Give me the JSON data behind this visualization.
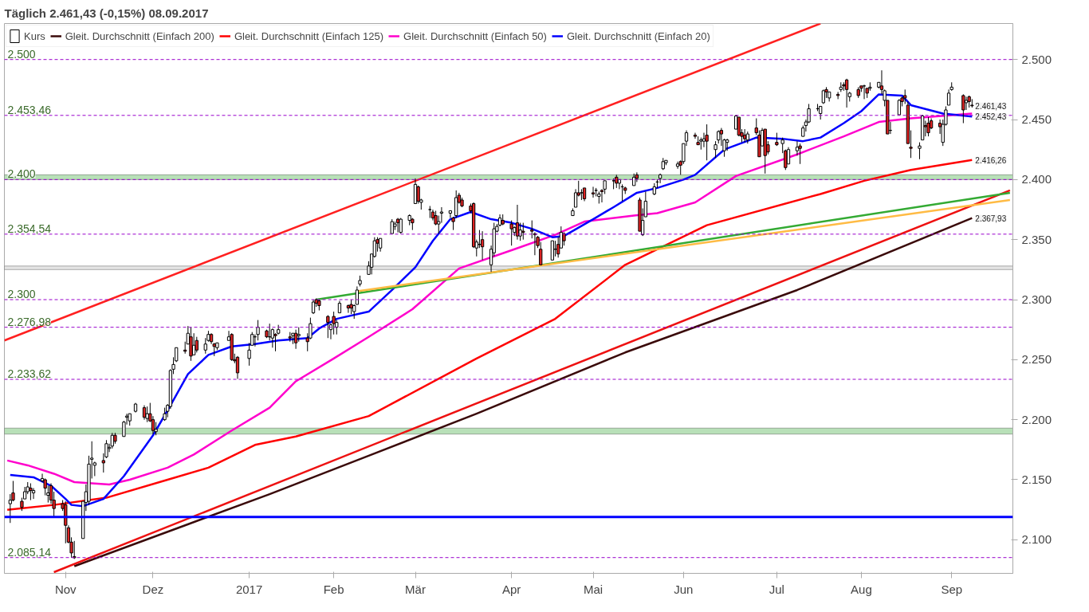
{
  "chart_data": {
    "type": "candlestick",
    "title": "Täglich   2.461,43 (-0,15%)   08.09.2017",
    "legend": "top left",
    "xlim": [
      "2016-10-11",
      "2017-09-22"
    ],
    "xticks": [
      {
        "value": "2016-11-01",
        "label": "Nov"
      },
      {
        "value": "2016-12-01",
        "label": "Dez"
      },
      {
        "value": "2017-01-03",
        "label": "2017"
      },
      {
        "value": "2017-02-01",
        "label": "Feb"
      },
      {
        "value": "2017-03-01",
        "label": "Mär"
      },
      {
        "value": "2017-04-03",
        "label": "Apr"
      },
      {
        "value": "2017-05-01",
        "label": "Mai"
      },
      {
        "value": "2017-06-01",
        "label": "Jun"
      },
      {
        "value": "2017-07-03",
        "label": "Jul"
      },
      {
        "value": "2017-08-01",
        "label": "Aug"
      },
      {
        "value": "2017-09-01",
        "label": "Sep"
      }
    ],
    "ylim": [
      2072,
      2530
    ],
    "yticks": [
      {
        "value": 2100,
        "label": "2.100"
      },
      {
        "value": 2150,
        "label": "2.150"
      },
      {
        "value": 2200,
        "label": "2.200"
      },
      {
        "value": 2250,
        "label": "2.250"
      },
      {
        "value": 2300,
        "label": "2.300"
      },
      {
        "value": 2350,
        "label": "2.350"
      },
      {
        "value": 2400,
        "label": "2.400"
      },
      {
        "value": 2450,
        "label": "2.450"
      },
      {
        "value": 2500,
        "label": "2.500"
      }
    ],
    "series": [
      {
        "name": "Kurs",
        "x": [
          "2016-10-13",
          "2016-10-14",
          "2016-10-17",
          "2016-10-18",
          "2016-10-19",
          "2016-10-20",
          "2016-10-21",
          "2016-10-24",
          "2016-10-25",
          "2016-10-26",
          "2016-10-27",
          "2016-10-28",
          "2016-10-31",
          "2016-11-01",
          "2016-11-02",
          "2016-11-03",
          "2016-11-04",
          "2016-11-07",
          "2016-11-08",
          "2016-11-09",
          "2016-11-10",
          "2016-11-11",
          "2016-11-14",
          "2016-11-15",
          "2016-11-16",
          "2016-11-17",
          "2016-11-18",
          "2016-11-21",
          "2016-11-22",
          "2016-11-23",
          "2016-11-25",
          "2016-11-28",
          "2016-11-29",
          "2016-11-30",
          "2016-12-01",
          "2016-12-02",
          "2016-12-05",
          "2016-12-06",
          "2016-12-07",
          "2016-12-08",
          "2016-12-09",
          "2016-12-12",
          "2016-12-13",
          "2016-12-14",
          "2016-12-15",
          "2016-12-16",
          "2016-12-19",
          "2016-12-20",
          "2016-12-21",
          "2016-12-22",
          "2016-12-23",
          "2016-12-27",
          "2016-12-28",
          "2016-12-29",
          "2016-12-30",
          "2017-01-03",
          "2017-01-04",
          "2017-01-05",
          "2017-01-06",
          "2017-01-09",
          "2017-01-10",
          "2017-01-11",
          "2017-01-12",
          "2017-01-13",
          "2017-01-17",
          "2017-01-18",
          "2017-01-19",
          "2017-01-20",
          "2017-01-23",
          "2017-01-24",
          "2017-01-25",
          "2017-01-26",
          "2017-01-27",
          "2017-01-30",
          "2017-01-31",
          "2017-02-01",
          "2017-02-02",
          "2017-02-03",
          "2017-02-06",
          "2017-02-07",
          "2017-02-08",
          "2017-02-09",
          "2017-02-10",
          "2017-02-13",
          "2017-02-14",
          "2017-02-15",
          "2017-02-16",
          "2017-02-17",
          "2017-02-21",
          "2017-02-22",
          "2017-02-23",
          "2017-02-24",
          "2017-02-27",
          "2017-02-28",
          "2017-03-01",
          "2017-03-02",
          "2017-03-03",
          "2017-03-06",
          "2017-03-07",
          "2017-03-08",
          "2017-03-09",
          "2017-03-10",
          "2017-03-13",
          "2017-03-14",
          "2017-03-15",
          "2017-03-16",
          "2017-03-17",
          "2017-03-20",
          "2017-03-21",
          "2017-03-22",
          "2017-03-23",
          "2017-03-24",
          "2017-03-27",
          "2017-03-28",
          "2017-03-29",
          "2017-03-30",
          "2017-03-31",
          "2017-04-03",
          "2017-04-04",
          "2017-04-05",
          "2017-04-06",
          "2017-04-07",
          "2017-04-10",
          "2017-04-11",
          "2017-04-12",
          "2017-04-13",
          "2017-04-17",
          "2017-04-18",
          "2017-04-19",
          "2017-04-20",
          "2017-04-21",
          "2017-04-24",
          "2017-04-25",
          "2017-04-26",
          "2017-04-27",
          "2017-04-28",
          "2017-05-01",
          "2017-05-02",
          "2017-05-03",
          "2017-05-04",
          "2017-05-05",
          "2017-05-08",
          "2017-05-09",
          "2017-05-10",
          "2017-05-11",
          "2017-05-12",
          "2017-05-15",
          "2017-05-16",
          "2017-05-17",
          "2017-05-18",
          "2017-05-19",
          "2017-05-22",
          "2017-05-23",
          "2017-05-24",
          "2017-05-25",
          "2017-05-26",
          "2017-05-30",
          "2017-05-31",
          "2017-06-01",
          "2017-06-02",
          "2017-06-05",
          "2017-06-06",
          "2017-06-07",
          "2017-06-08",
          "2017-06-09",
          "2017-06-12",
          "2017-06-13",
          "2017-06-14",
          "2017-06-15",
          "2017-06-16",
          "2017-06-19",
          "2017-06-20",
          "2017-06-21",
          "2017-06-22",
          "2017-06-23",
          "2017-06-26",
          "2017-06-27",
          "2017-06-28",
          "2017-06-29",
          "2017-06-30",
          "2017-07-03",
          "2017-07-05",
          "2017-07-06",
          "2017-07-07",
          "2017-07-10",
          "2017-07-11",
          "2017-07-12",
          "2017-07-13",
          "2017-07-14",
          "2017-07-17",
          "2017-07-18",
          "2017-07-19",
          "2017-07-20",
          "2017-07-21",
          "2017-07-24",
          "2017-07-25",
          "2017-07-26",
          "2017-07-27",
          "2017-07-28",
          "2017-07-31",
          "2017-08-01",
          "2017-08-02",
          "2017-08-03",
          "2017-08-04",
          "2017-08-07",
          "2017-08-08",
          "2017-08-09",
          "2017-08-10",
          "2017-08-11",
          "2017-08-14",
          "2017-08-15",
          "2017-08-16",
          "2017-08-17",
          "2017-08-18",
          "2017-08-21",
          "2017-08-22",
          "2017-08-23",
          "2017-08-24",
          "2017-08-25",
          "2017-08-28",
          "2017-08-29",
          "2017-08-30",
          "2017-08-31",
          "2017-09-01",
          "2017-09-05",
          "2017-09-06",
          "2017-09-07",
          "2017-09-08"
        ],
        "ohlc": [
          [
            2130,
            2138,
            2114,
            2133
          ],
          [
            2139,
            2149,
            2132,
            2133
          ],
          [
            2132,
            2135,
            2124,
            2127
          ],
          [
            2134,
            2144,
            2134,
            2140
          ],
          [
            2140,
            2148,
            2138,
            2144
          ],
          [
            2143,
            2147,
            2133,
            2141
          ],
          [
            2139,
            2143,
            2134,
            2141
          ],
          [
            2149,
            2155,
            2148,
            2151
          ],
          [
            2150,
            2151,
            2137,
            2143
          ],
          [
            2137,
            2145,
            2131,
            2139
          ],
          [
            2145,
            2147,
            2130,
            2133
          ],
          [
            2133,
            2140,
            2119,
            2126
          ],
          [
            2130,
            2133,
            2124,
            2126
          ],
          [
            2129,
            2132,
            2097,
            2112
          ],
          [
            2110,
            2112,
            2097,
            2098
          ],
          [
            2098,
            2102,
            2085,
            2089
          ],
          [
            2086,
            2099,
            2084,
            2085
          ],
          [
            2101,
            2132,
            2101,
            2132
          ],
          [
            2131,
            2146,
            2124,
            2140
          ],
          [
            2132,
            2170,
            2129,
            2163
          ],
          [
            2167,
            2182,
            2151,
            2168
          ],
          [
            2162,
            2165,
            2153,
            2164
          ],
          [
            2166,
            2172,
            2156,
            2164
          ],
          [
            2169,
            2183,
            2168,
            2180
          ],
          [
            2176,
            2180,
            2173,
            2177
          ],
          [
            2178,
            2189,
            2176,
            2187
          ],
          [
            2187,
            2189,
            2180,
            2182
          ],
          [
            2186,
            2199,
            2186,
            2198
          ],
          [
            2202,
            2205,
            2196,
            2203
          ],
          [
            2199,
            2205,
            2195,
            2205
          ],
          [
            2207,
            2214,
            2206,
            2213
          ],
          [
            2210,
            2212,
            2200,
            2202
          ],
          [
            2201,
            2211,
            2198,
            2205
          ],
          [
            2205,
            2214,
            2198,
            2199
          ],
          [
            2200,
            2203,
            2188,
            2191
          ],
          [
            2190,
            2198,
            2187,
            2192
          ],
          [
            2200,
            2210,
            2199,
            2205
          ],
          [
            2207,
            2213,
            2202,
            2212
          ],
          [
            2211,
            2242,
            2209,
            2241
          ],
          [
            2242,
            2252,
            2238,
            2246
          ],
          [
            2249,
            2260,
            2248,
            2260
          ],
          [
            2258,
            2265,
            2255,
            2257
          ],
          [
            2263,
            2278,
            2263,
            2272
          ],
          [
            2269,
            2277,
            2249,
            2253
          ],
          [
            2254,
            2272,
            2254,
            2262
          ],
          [
            2266,
            2269,
            2256,
            2258
          ],
          [
            2258,
            2268,
            2255,
            2263
          ],
          [
            2266,
            2274,
            2265,
            2271
          ],
          [
            2271,
            2272,
            2263,
            2265
          ],
          [
            2263,
            2264,
            2253,
            2261
          ],
          [
            2260,
            2264,
            2258,
            2264
          ],
          [
            2266,
            2274,
            2266,
            2269
          ],
          [
            2271,
            2272,
            2249,
            2250
          ],
          [
            2250,
            2255,
            2247,
            2249
          ],
          [
            2252,
            2253,
            2234,
            2239
          ],
          [
            2251,
            2264,
            2245,
            2258
          ],
          [
            2262,
            2273,
            2262,
            2271
          ],
          [
            2269,
            2271,
            2261,
            2269
          ],
          [
            2271,
            2283,
            2266,
            2277
          ],
          [
            2274,
            2275,
            2268,
            2269
          ],
          [
            2269,
            2280,
            2266,
            2269
          ],
          [
            2268,
            2276,
            2260,
            2275
          ],
          [
            2271,
            2272,
            2257,
            2270
          ],
          [
            2272,
            2279,
            2271,
            2275
          ],
          [
            2269,
            2273,
            2265,
            2268
          ],
          [
            2270,
            2272,
            2263,
            2272
          ],
          [
            2272,
            2275,
            2259,
            2264
          ],
          [
            2270,
            2277,
            2265,
            2271
          ],
          [
            2268,
            2272,
            2257,
            2265
          ],
          [
            2268,
            2285,
            2267,
            2280
          ],
          [
            2289,
            2300,
            2288,
            2298
          ],
          [
            2300,
            2301,
            2294,
            2297
          ],
          [
            2299,
            2300,
            2291,
            2295
          ],
          [
            2286,
            2287,
            2268,
            2281
          ],
          [
            2275,
            2280,
            2267,
            2279
          ],
          [
            2286,
            2290,
            2271,
            2280
          ],
          [
            2277,
            2283,
            2271,
            2281
          ],
          [
            2289,
            2299,
            2289,
            2297
          ],
          [
            2295,
            2296,
            2289,
            2293
          ],
          [
            2296,
            2300,
            2288,
            2293
          ],
          [
            2290,
            2296,
            2284,
            2295
          ],
          [
            2296,
            2311,
            2296,
            2308
          ],
          [
            2313,
            2320,
            2311,
            2316
          ],
          [
            2321,
            2332,
            2321,
            2328
          ],
          [
            2327,
            2338,
            2321,
            2338
          ],
          [
            2336,
            2352,
            2335,
            2349
          ],
          [
            2350,
            2352,
            2340,
            2347
          ],
          [
            2343,
            2351,
            2340,
            2351
          ],
          [
            2355,
            2367,
            2355,
            2365
          ],
          [
            2361,
            2365,
            2358,
            2363
          ],
          [
            2367,
            2368,
            2356,
            2364
          ],
          [
            2356,
            2368,
            2355,
            2367
          ],
          [
            2366,
            2371,
            2362,
            2370
          ],
          [
            2367,
            2368,
            2358,
            2364
          ],
          [
            2380,
            2401,
            2380,
            2396
          ],
          [
            2394,
            2395,
            2380,
            2382
          ],
          [
            2381,
            2384,
            2375,
            2383
          ],
          [
            2375,
            2378,
            2368,
            2375
          ],
          [
            2373,
            2375,
            2366,
            2368
          ],
          [
            2370,
            2374,
            2362,
            2363
          ],
          [
            2363,
            2370,
            2355,
            2365
          ],
          [
            2372,
            2377,
            2364,
            2373
          ],
          [
            2372,
            2374,
            2368,
            2374
          ],
          [
            2368,
            2369,
            2358,
            2365
          ],
          [
            2370,
            2391,
            2368,
            2385
          ],
          [
            2387,
            2389,
            2380,
            2381
          ],
          [
            2383,
            2385,
            2377,
            2378
          ],
          [
            2378,
            2380,
            2372,
            2374
          ],
          [
            2380,
            2381,
            2343,
            2344
          ],
          [
            2343,
            2350,
            2336,
            2348
          ],
          [
            2346,
            2358,
            2343,
            2346
          ],
          [
            2350,
            2357,
            2333,
            2344
          ],
          [
            2329,
            2345,
            2323,
            2342
          ],
          [
            2339,
            2364,
            2336,
            2359
          ],
          [
            2357,
            2363,
            2356,
            2361
          ],
          [
            2362,
            2371,
            2361,
            2368
          ],
          [
            2366,
            2371,
            2362,
            2363
          ],
          [
            2363,
            2366,
            2345,
            2359
          ],
          [
            2356,
            2361,
            2353,
            2360
          ],
          [
            2364,
            2379,
            2350,
            2353
          ],
          [
            2353,
            2364,
            2349,
            2358
          ],
          [
            2357,
            2364,
            2350,
            2356
          ],
          [
            2358,
            2366,
            2351,
            2357
          ],
          [
            2355,
            2356,
            2337,
            2354
          ],
          [
            2352,
            2353,
            2343,
            2345
          ],
          [
            2342,
            2348,
            2329,
            2329
          ],
          [
            2333,
            2349,
            2333,
            2349
          ],
          [
            2342,
            2349,
            2336,
            2342
          ],
          [
            2346,
            2352,
            2335,
            2338
          ],
          [
            2343,
            2361,
            2343,
            2356
          ],
          [
            2355,
            2356,
            2345,
            2349
          ],
          [
            2370,
            2376,
            2370,
            2374
          ],
          [
            2377,
            2392,
            2377,
            2389
          ],
          [
            2389,
            2399,
            2386,
            2387
          ],
          [
            2389,
            2392,
            2383,
            2389
          ],
          [
            2393,
            2393,
            2382,
            2384
          ],
          [
            2389,
            2394,
            2385,
            2388
          ],
          [
            2391,
            2393,
            2386,
            2391
          ],
          [
            2386,
            2390,
            2380,
            2388
          ],
          [
            2391,
            2392,
            2381,
            2390
          ],
          [
            2392,
            2399,
            2388,
            2399
          ],
          [
            2399,
            2401,
            2392,
            2399
          ],
          [
            2402,
            2404,
            2393,
            2397
          ],
          [
            2397,
            2400,
            2392,
            2400
          ],
          [
            2394,
            2396,
            2382,
            2394
          ],
          [
            2393,
            2394,
            2388,
            2391
          ],
          [
            2395,
            2405,
            2395,
            2402
          ],
          [
            2404,
            2406,
            2398,
            2401
          ],
          [
            2383,
            2385,
            2357,
            2357
          ],
          [
            2354,
            2376,
            2353,
            2366
          ],
          [
            2369,
            2390,
            2369,
            2382
          ],
          [
            2388,
            2397,
            2387,
            2394
          ],
          [
            2398,
            2400,
            2393,
            2398
          ],
          [
            2401,
            2405,
            2397,
            2404
          ],
          [
            2409,
            2418,
            2408,
            2415
          ],
          [
            2414,
            2416,
            2412,
            2416
          ],
          [
            2411,
            2415,
            2409,
            2413
          ],
          [
            2415,
            2416,
            2404,
            2412
          ],
          [
            2415,
            2430,
            2413,
            2430
          ],
          [
            2432,
            2441,
            2428,
            2439
          ],
          [
            2437,
            2439,
            2434,
            2436
          ],
          [
            2431,
            2436,
            2429,
            2429
          ],
          [
            2432,
            2435,
            2425,
            2433
          ],
          [
            2432,
            2439,
            2427,
            2434
          ],
          [
            2437,
            2446,
            2416,
            2432
          ],
          [
            2425,
            2432,
            2418,
            2429
          ],
          [
            2433,
            2441,
            2430,
            2440
          ],
          [
            2441,
            2443,
            2428,
            2438
          ],
          [
            2424,
            2434,
            2419,
            2433
          ],
          [
            2431,
            2434,
            2424,
            2433
          ],
          [
            2442,
            2454,
            2442,
            2453
          ],
          [
            2452,
            2452,
            2436,
            2437
          ],
          [
            2439,
            2442,
            2431,
            2436
          ],
          [
            2437,
            2442,
            2431,
            2434
          ],
          [
            2433,
            2440,
            2430,
            2438
          ],
          [
            2443,
            2451,
            2437,
            2439
          ],
          [
            2437,
            2441,
            2419,
            2419
          ],
          [
            2428,
            2443,
            2428,
            2441
          ],
          [
            2442,
            2442,
            2405,
            2420
          ],
          [
            2429,
            2432,
            2421,
            2423
          ],
          [
            2431,
            2439,
            2428,
            2429
          ],
          [
            2430,
            2435,
            2422,
            2433
          ],
          [
            2424,
            2425,
            2408,
            2410
          ],
          [
            2413,
            2427,
            2413,
            2425
          ],
          [
            2424,
            2432,
            2420,
            2427
          ],
          [
            2428,
            2430,
            2413,
            2426
          ],
          [
            2436,
            2445,
            2436,
            2443
          ],
          [
            2445,
            2450,
            2440,
            2448
          ],
          [
            2448,
            2463,
            2447,
            2459
          ],
          [
            2459,
            2463,
            2457,
            2459
          ],
          [
            2455,
            2461,
            2450,
            2461
          ],
          [
            2464,
            2475,
            2463,
            2474
          ],
          [
            2475,
            2477,
            2468,
            2473
          ],
          [
            2468,
            2473,
            2465,
            2473
          ],
          [
            2471,
            2473,
            2467,
            2470
          ],
          [
            2475,
            2481,
            2473,
            2477
          ],
          [
            2479,
            2481,
            2474,
            2478
          ],
          [
            2483,
            2484,
            2460,
            2475
          ],
          [
            2469,
            2473,
            2465,
            2472
          ],
          [
            2475,
            2477,
            2468,
            2470
          ],
          [
            2478,
            2478,
            2473,
            2476
          ],
          [
            2478,
            2479,
            2467,
            2478
          ],
          [
            2476,
            2476,
            2468,
            2472
          ],
          [
            2476,
            2481,
            2474,
            2477
          ],
          [
            2477,
            2481,
            2476,
            2481
          ],
          [
            2478,
            2491,
            2471,
            2475
          ],
          [
            2466,
            2475,
            2461,
            2474
          ],
          [
            2466,
            2466,
            2438,
            2438
          ],
          [
            2441,
            2448,
            2438,
            2441
          ],
          [
            2454,
            2467,
            2454,
            2466
          ],
          [
            2468,
            2469,
            2461,
            2465
          ],
          [
            2470,
            2475,
            2463,
            2468
          ],
          [
            2462,
            2465,
            2430,
            2430
          ],
          [
            2427,
            2441,
            2418,
            2426
          ],
          [
            2426,
            2431,
            2417,
            2428
          ],
          [
            2433,
            2454,
            2433,
            2453
          ],
          [
            2445,
            2449,
            2436,
            2444
          ],
          [
            2447,
            2452,
            2436,
            2439
          ],
          [
            2449,
            2451,
            2442,
            2443
          ],
          [
            2447,
            2450,
            2438,
            2444
          ],
          [
            2431,
            2450,
            2428,
            2446
          ],
          [
            2446,
            2461,
            2445,
            2458
          ],
          [
            2462,
            2475,
            2462,
            2472
          ],
          [
            2475,
            2481,
            2474,
            2477
          ],
          [
            2470,
            2471,
            2447,
            2458
          ],
          [
            2464,
            2469,
            2458,
            2466
          ],
          [
            2469,
            2470,
            2460,
            2465
          ],
          [
            2462,
            2467,
            2460,
            2461.43
          ]
        ]
      },
      {
        "name": "Gleit. Durchschnitt (Einfach 200)",
        "type": "line",
        "color": "#3a0a0a",
        "x": [
          "2016-11-04",
          "2016-12-12",
          "2017-01-10",
          "2017-02-13",
          "2017-03-22",
          "2017-05-12",
          "2017-07-10",
          "2017-09-08"
        ],
        "values": [
          2078,
          2112,
          2138,
          2170,
          2205,
          2256,
          2308,
          2367.93
        ]
      },
      {
        "name": "Gleit. Durchschnitt (Einfach 125)",
        "type": "line",
        "color": "#ff0000",
        "x": [
          "2016-10-12",
          "2016-10-28",
          "2016-11-15",
          "2016-12-06",
          "2016-12-20",
          "2017-01-05",
          "2017-01-19",
          "2017-02-13",
          "2017-03-22",
          "2017-04-18",
          "2017-05-12",
          "2017-06-09",
          "2017-07-18",
          "2017-08-02",
          "2017-08-18",
          "2017-09-08"
        ],
        "values": [
          2125,
          2129,
          2135,
          2150,
          2160,
          2179,
          2186,
          2203,
          2251,
          2284,
          2329,
          2362,
          2388,
          2399,
          2408,
          2416.26
        ]
      },
      {
        "name": "Gleit. Durchschnitt (Einfach 50)",
        "type": "line",
        "color": "#ff00cc",
        "x": [
          "2016-10-12",
          "2016-10-19",
          "2016-10-28",
          "2016-11-04",
          "2016-11-16",
          "2016-11-23",
          "2016-12-06",
          "2016-12-15",
          "2016-12-28",
          "2017-01-10",
          "2017-01-19",
          "2017-02-01",
          "2017-02-13",
          "2017-02-28",
          "2017-03-16",
          "2017-04-04",
          "2017-04-18",
          "2017-04-28",
          "2017-05-15",
          "2017-05-23",
          "2017-06-05",
          "2017-06-19",
          "2017-07-10",
          "2017-07-26",
          "2017-08-07",
          "2017-08-18",
          "2017-09-08"
        ],
        "values": [
          2166,
          2162,
          2155,
          2148,
          2146,
          2150,
          2160,
          2171,
          2191,
          2210,
          2232,
          2251,
          2269,
          2292,
          2326,
          2342,
          2354,
          2365,
          2370,
          2372,
          2381,
          2403,
          2421,
          2436,
          2448,
          2451,
          2455
        ]
      },
      {
        "name": "Gleit. Durchschnitt (Einfach 20)",
        "type": "line",
        "color": "#0000ff",
        "x": [
          "2016-10-13",
          "2016-10-21",
          "2016-10-27",
          "2016-11-01",
          "2016-11-03",
          "2016-11-07",
          "2016-11-14",
          "2016-11-21",
          "2016-12-01",
          "2016-12-07",
          "2016-12-13",
          "2016-12-20",
          "2016-12-28",
          "2017-01-05",
          "2017-01-13",
          "2017-01-23",
          "2017-01-27",
          "2017-02-02",
          "2017-02-13",
          "2017-02-21",
          "2017-03-01",
          "2017-03-07",
          "2017-03-13",
          "2017-03-20",
          "2017-03-27",
          "2017-04-03",
          "2017-04-10",
          "2017-04-17",
          "2017-04-21",
          "2017-05-01",
          "2017-05-08",
          "2017-05-16",
          "2017-05-23",
          "2017-06-01",
          "2017-06-05",
          "2017-06-15",
          "2017-06-26",
          "2017-07-05",
          "2017-07-12",
          "2017-07-18",
          "2017-07-26",
          "2017-08-01",
          "2017-08-07",
          "2017-08-15",
          "2017-08-18",
          "2017-08-29",
          "2017-09-08"
        ],
        "values": [
          2154,
          2152,
          2145,
          2134,
          2129,
          2128,
          2134,
          2153,
          2187,
          2212,
          2238,
          2254,
          2261,
          2263,
          2266,
          2268,
          2276,
          2284,
          2290,
          2308,
          2327,
          2349,
          2367,
          2373,
          2367,
          2364,
          2359,
          2352,
          2353,
          2367,
          2377,
          2389,
          2393,
          2400,
          2404,
          2425,
          2435,
          2434,
          2432,
          2435,
          2447,
          2457,
          2471,
          2470,
          2462,
          2455,
          2452.43
        ]
      },
      {
        "type": "line",
        "color": "#ff2020",
        "x": [
          "2016-10-11",
          "2017-07-18"
        ],
        "values": [
          2266,
          2530
        ]
      },
      {
        "type": "line",
        "color": "#ee1111",
        "x": [
          "2016-10-28",
          "2017-09-21"
        ],
        "values": [
          2073,
          2391
        ]
      },
      {
        "type": "line",
        "color": "#33aa33",
        "x": [
          "2017-01-26",
          "2017-09-21"
        ],
        "values": [
          2300,
          2389
        ]
      },
      {
        "type": "line",
        "color": "#ffbb44",
        "x": [
          "2017-02-09",
          "2017-09-21"
        ],
        "values": [
          2307,
          2383
        ]
      }
    ],
    "ref_lines": [
      {
        "axis": "y",
        "value": 2500,
        "label": "2.500",
        "color": "#9900cc",
        "line_style": "dashed"
      },
      {
        "axis": "y",
        "value": 2453.46,
        "label": "2.453,46",
        "color": "#9900cc",
        "line_style": "dashed"
      },
      {
        "axis": "y",
        "value": 2400,
        "label": "2.400",
        "color": "#9900cc",
        "line_style": "dashed"
      },
      {
        "axis": "y",
        "value": 2354.54,
        "label": "2.354,54",
        "color": "#9900cc",
        "line_style": "dashed"
      },
      {
        "axis": "y",
        "value": 2300,
        "label": "2.300",
        "color": "#9900cc",
        "line_style": "dashed"
      },
      {
        "axis": "y",
        "value": 2276.98,
        "label": "2.276,98",
        "color": "#9900cc",
        "line_style": "dashed"
      },
      {
        "axis": "y",
        "value": 2233.62,
        "label": "2.233,62",
        "color": "#9900cc",
        "line_style": "dashed"
      },
      {
        "axis": "y",
        "value": 2085.14,
        "label": "2.085,14",
        "color": "#9900cc",
        "line_style": "dashed"
      },
      {
        "axis": "y",
        "value": 2119,
        "label": null,
        "color": "#0000ff",
        "line_style": "solid"
      }
    ],
    "bands": [
      {
        "axis": "y",
        "from": 2188,
        "to": 2193,
        "label": null,
        "color": "#b8e0b8"
      },
      {
        "axis": "y",
        "from": 2400,
        "to": 2404,
        "label": null,
        "color": "#b8e0b8"
      },
      {
        "axis": "y",
        "from": 2325,
        "to": 2328,
        "label": null,
        "color": "#e4e4e4"
      }
    ],
    "annotations": [
      {
        "text": "2.461,43",
        "x": "2017-09-08",
        "y": 2461.43
      },
      {
        "text": "2.452,43",
        "x": "2017-09-08",
        "y": 2452.43
      },
      {
        "text": "2.416,26",
        "x": "2017-09-08",
        "y": 2416.26
      },
      {
        "text": "2.367,93",
        "x": "2017-09-08",
        "y": 2367.93
      }
    ]
  }
}
